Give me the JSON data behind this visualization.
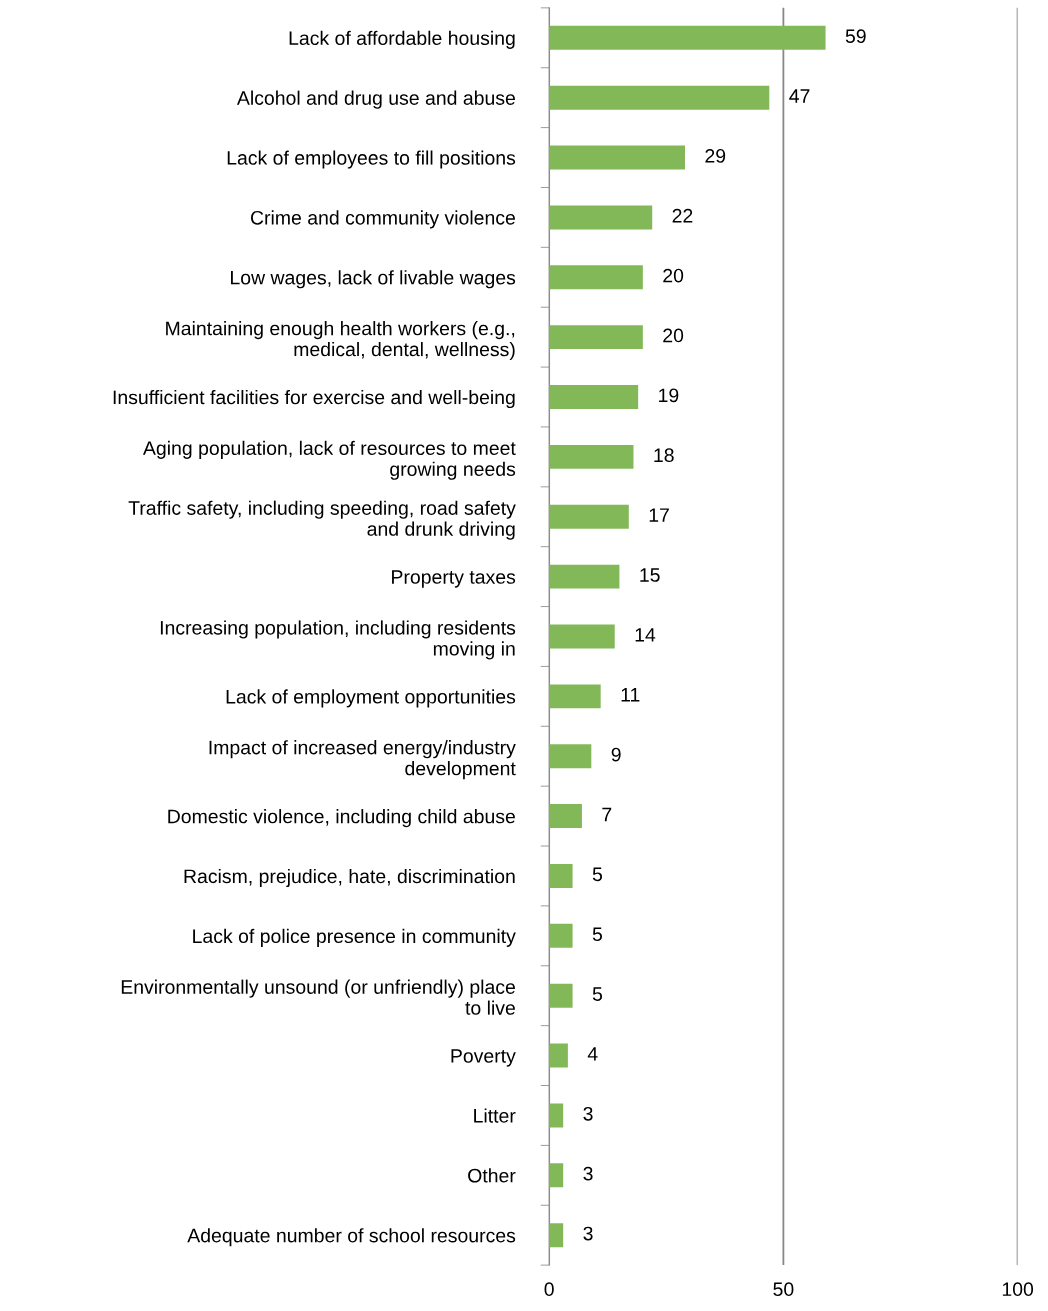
{
  "chart_data": {
    "type": "bar",
    "orientation": "horizontal",
    "categories": [
      "Lack of affordable housing",
      "Alcohol and drug use and abuse",
      "Lack of employees to fill positions",
      "Crime and community violence",
      "Low wages, lack of livable wages",
      "Maintaining enough health workers (e.g.,\nmedical, dental, wellness)",
      "Insufficient facilities for exercise and well-being",
      "Aging population, lack of resources to meet\ngrowing needs",
      "Traffic safety, including speeding, road safety\nand drunk driving",
      "Property taxes",
      "Increasing population, including residents\nmoving in",
      "Lack of employment opportunities",
      "Impact of increased energy/industry\ndevelopment",
      "Domestic violence, including child abuse",
      "Racism, prejudice, hate, discrimination",
      "Lack of police presence in community",
      "Environmentally unsound (or unfriendly) place\nto live",
      "Poverty",
      "Litter",
      "Other",
      "Adequate number of school resources"
    ],
    "values": [
      59,
      47,
      29,
      22,
      20,
      20,
      19,
      18,
      17,
      15,
      14,
      11,
      9,
      7,
      5,
      5,
      5,
      4,
      3,
      3,
      3
    ],
    "color": "#82b858",
    "xlim": [
      0,
      100
    ],
    "xticks": [
      0,
      50,
      100
    ],
    "grid": "x",
    "data_labels": true
  }
}
